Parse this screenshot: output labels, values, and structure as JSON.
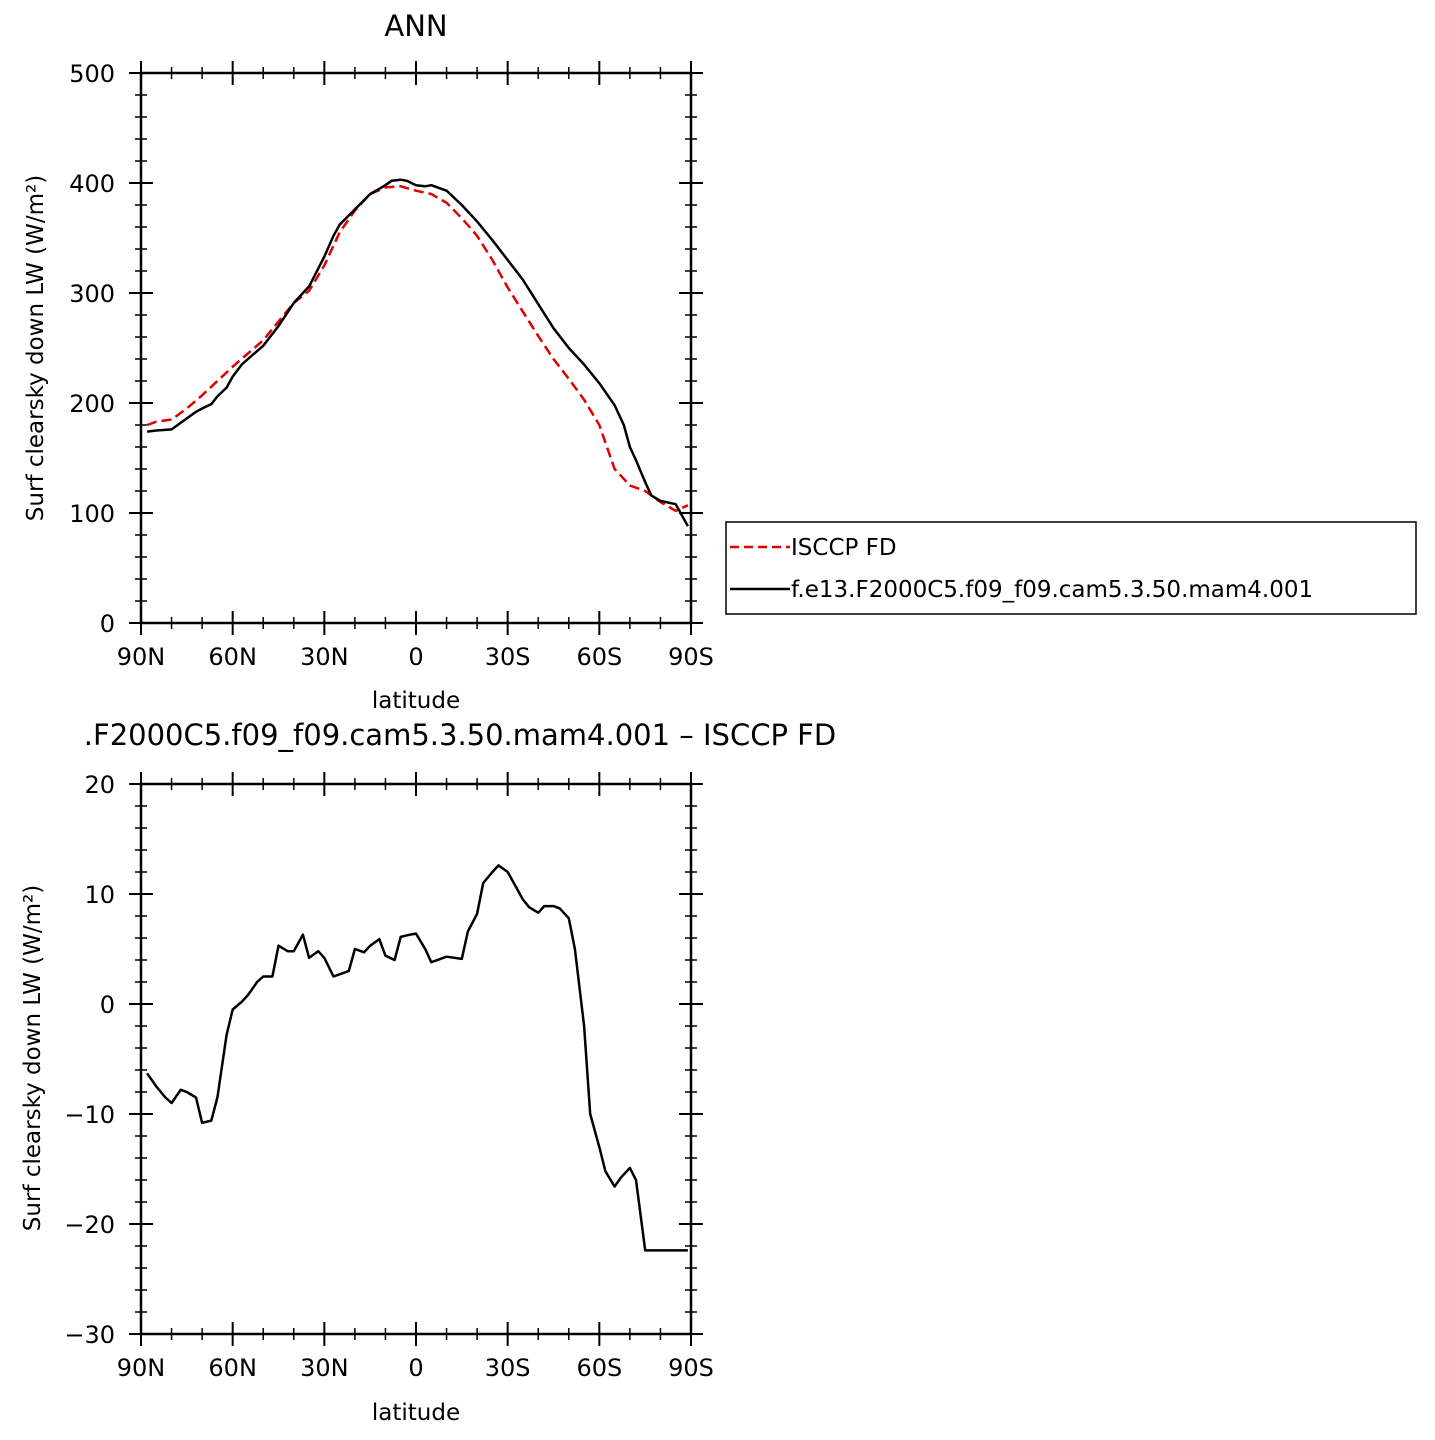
{
  "colors": {
    "obs": "#e00000",
    "model": "#000000",
    "frame": "#000000"
  },
  "chart_data": [
    {
      "type": "line",
      "title": "ANN",
      "xlabel": "latitude",
      "ylabel": "Surf clearsky down LW (W/m²)",
      "xlim": [
        -90,
        90
      ],
      "ylim": [
        0,
        500
      ],
      "xticks": [
        -90,
        -60,
        -30,
        0,
        30,
        60,
        90
      ],
      "xtick_labels": [
        "90N",
        "60N",
        "30N",
        "0",
        "30S",
        "60S",
        "90S"
      ],
      "yticks": [
        0,
        100,
        200,
        300,
        400,
        500
      ],
      "ytick_labels": [
        "0",
        "100",
        "200",
        "300",
        "400",
        "500"
      ],
      "series": [
        {
          "name": "ISCCP FD",
          "style": "dashed",
          "x": [
            -88,
            -85,
            -80,
            -75,
            -70,
            -65,
            -60,
            -55,
            -50,
            -45,
            -40,
            -35,
            -30,
            -25,
            -20,
            -15,
            -10,
            -5,
            0,
            5,
            10,
            15,
            20,
            25,
            30,
            35,
            40,
            45,
            50,
            55,
            60,
            65,
            70,
            75,
            80,
            85,
            89
          ],
          "y": [
            180,
            183,
            185,
            195,
            207,
            220,
            233,
            245,
            257,
            274,
            291,
            302,
            325,
            355,
            375,
            390,
            396,
            397,
            393,
            390,
            382,
            368,
            352,
            330,
            305,
            283,
            261,
            240,
            222,
            203,
            180,
            140,
            125,
            120,
            110,
            102,
            107
          ]
        },
        {
          "name": "f.e13.F2000C5.f09_f09.cam5.3.50.mam4.001",
          "style": "solid",
          "x": [
            -88,
            -85,
            -80,
            -75,
            -72,
            -70,
            -67,
            -65,
            -62,
            -60,
            -57,
            -55,
            -50,
            -45,
            -40,
            -35,
            -30,
            -27,
            -25,
            -20,
            -15,
            -10,
            -8,
            -5,
            -3,
            0,
            3,
            5,
            10,
            15,
            20,
            25,
            30,
            35,
            40,
            45,
            50,
            55,
            60,
            65,
            68,
            70,
            72,
            75,
            77,
            80,
            85,
            89
          ],
          "y": [
            174,
            175,
            176,
            186,
            192,
            195,
            199,
            206,
            214,
            224,
            235,
            240,
            252,
            270,
            291,
            306,
            333,
            352,
            362,
            376,
            390,
            398,
            402,
            403,
            402,
            398,
            397,
            398,
            393,
            380,
            365,
            348,
            330,
            312,
            290,
            268,
            250,
            235,
            218,
            198,
            180,
            160,
            148,
            128,
            116,
            111,
            108,
            88
          ]
        }
      ],
      "legend": {
        "placement": "right",
        "entries": [
          "ISCCP FD",
          "f.e13.F2000C5.f09_f09.cam5.3.50.mam4.001"
        ]
      }
    },
    {
      "type": "line",
      "title": ".F2000C5.f09_f09.cam5.3.50.mam4.001 – ISCCP FD",
      "xlabel": "latitude",
      "ylabel": "Surf clearsky down LW (W/m²)",
      "xlim": [
        -90,
        90
      ],
      "ylim": [
        -30,
        20
      ],
      "xticks": [
        -90,
        -60,
        -30,
        0,
        30,
        60,
        90
      ],
      "xtick_labels": [
        "90N",
        "60N",
        "30N",
        "0",
        "30S",
        "60S",
        "90S"
      ],
      "yticks": [
        -30,
        -20,
        -10,
        0,
        10,
        20
      ],
      "ytick_labels": [
        "−30",
        "−20",
        "−10",
        "0",
        "10",
        "20"
      ],
      "series": [
        {
          "name": "",
          "style": "solid",
          "x": [
            -88,
            -85,
            -82,
            -80,
            -77,
            -75,
            -72,
            -70,
            -67,
            -65,
            -62,
            -60,
            -57,
            -55,
            -52,
            -50,
            -47,
            -45,
            -42,
            -40,
            -37,
            -35,
            -32,
            -30,
            -27,
            -25,
            -22,
            -20,
            -17,
            -15,
            -12,
            -10,
            -7,
            -5,
            -2,
            0,
            3,
            5,
            10,
            15,
            17,
            20,
            22,
            25,
            27,
            30,
            32,
            35,
            37,
            40,
            42,
            45,
            47,
            50,
            52,
            55,
            57,
            60,
            62,
            65,
            67,
            70,
            72,
            75,
            77,
            80,
            82,
            85,
            87,
            89
          ],
          "y": [
            -6.3,
            -7.5,
            -8.5,
            -9.0,
            -7.8,
            -8.0,
            -8.5,
            -10.8,
            -10.6,
            -8.5,
            -2.8,
            -0.5,
            0.2,
            0.8,
            2.0,
            2.5,
            2.5,
            5.3,
            4.8,
            4.8,
            6.3,
            4.2,
            4.8,
            4.2,
            2.5,
            2.7,
            3.0,
            5.0,
            4.7,
            5.3,
            5.9,
            4.4,
            4.0,
            6.1,
            6.3,
            6.4,
            5.0,
            3.8,
            4.3,
            4.1,
            6.6,
            8.2,
            11.0,
            12.0,
            12.6,
            12.0,
            11.0,
            9.5,
            8.8,
            8.3,
            8.9,
            8.9,
            8.7,
            7.8,
            5.0,
            -2.0,
            -10.0,
            -13.0,
            -15.2,
            -16.6,
            -15.8,
            -14.9,
            -16.0,
            -22.4,
            -22.4,
            -22.4,
            -22.4,
            -22.4,
            -22.4,
            -22.4
          ]
        }
      ]
    }
  ]
}
